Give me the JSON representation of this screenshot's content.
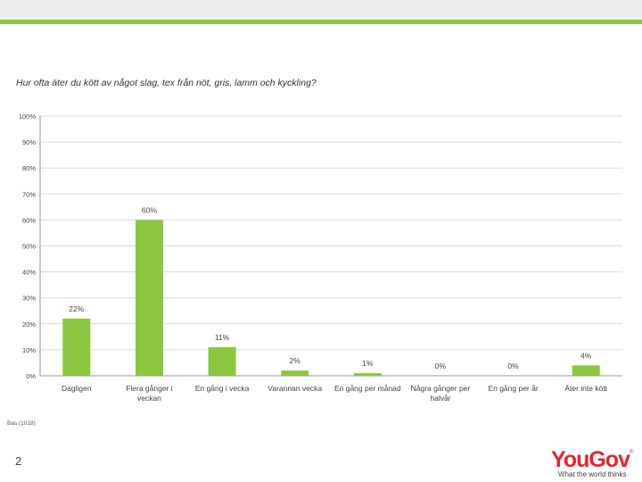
{
  "question": "Hur ofta äter du kött av något slag, tex från nöt, gris, lamm och kyckling?",
  "footer": {
    "base_note": "Bas (1018)",
    "page_number": "2",
    "logo_text": "YouGov",
    "logo_tagline": "What the world thinks"
  },
  "colors": {
    "bar": "#8cc63f",
    "accent_bar": "#8cc63f",
    "top_band": "#eeeeee"
  },
  "chart_data": {
    "type": "bar",
    "title": "Hur ofta äter du kött av något slag, tex från nöt, gris, lamm och kyckling?",
    "categories": [
      [
        "Dagligen"
      ],
      [
        "Flera gånger i",
        "veckan"
      ],
      [
        "En gång i vecka"
      ],
      [
        "Varannan vecka"
      ],
      [
        "En gång per månad"
      ],
      [
        "Några gånger per",
        "halvår"
      ],
      [
        "En gång per år"
      ],
      [
        "Äter inte kött"
      ]
    ],
    "values": [
      22,
      60,
      11,
      2,
      1,
      0,
      0,
      4
    ],
    "value_labels": [
      "22%",
      "60%",
      "11%",
      "2%",
      "1%",
      "0%",
      "0%",
      "4%"
    ],
    "yticks": [
      "0%",
      "10%",
      "20%",
      "30%",
      "40%",
      "50%",
      "60%",
      "70%",
      "80%",
      "90%",
      "100%"
    ],
    "ylim": [
      0,
      100
    ],
    "xlabel": "",
    "ylabel": "",
    "grid": true,
    "legend": "none"
  }
}
